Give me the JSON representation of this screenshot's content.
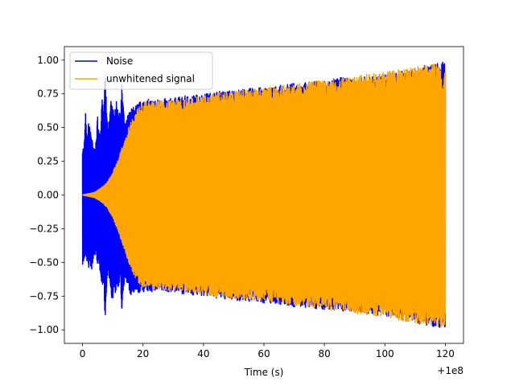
{
  "chart_data": {
    "type": "line",
    "title": "",
    "xlabel": "Time (s)",
    "ylabel": "",
    "x_offset_label": "+1e8",
    "xlim": [
      -6,
      126
    ],
    "ylim": [
      -1.1,
      1.1
    ],
    "x_ticks": [
      0,
      20,
      40,
      60,
      80,
      100,
      120
    ],
    "x_tick_labels": [
      "0",
      "20",
      "40",
      "60",
      "80",
      "100",
      "120"
    ],
    "y_ticks": [
      -1.0,
      -0.75,
      -0.5,
      -0.25,
      0.0,
      0.25,
      0.5,
      0.75,
      1.0
    ],
    "y_tick_labels": [
      "−1.00",
      "−0.75",
      "−0.50",
      "−0.25",
      "0.00",
      "0.25",
      "0.50",
      "0.75",
      "1.00"
    ],
    "grid": false,
    "legend_position": "top-left",
    "series": [
      {
        "name": "Noise",
        "color": "#0000ff",
        "envelope": {
          "x": [
            0,
            0.5,
            1,
            1.5,
            2,
            2.5,
            3,
            3.5,
            4,
            4.5,
            5,
            5.5,
            6,
            6.5,
            7,
            7.5,
            8,
            8.5,
            9,
            9.5,
            10,
            10.5,
            11,
            11.5,
            12,
            12.5,
            13,
            13.5,
            14,
            15,
            16,
            20,
            25,
            30,
            35,
            40,
            45,
            50,
            55,
            60,
            65,
            70,
            75,
            80,
            85,
            90,
            95,
            100,
            105,
            110,
            115,
            120
          ],
          "upper": [
            0.36,
            0.35,
            0.61,
            0.4,
            0.55,
            0.5,
            0.45,
            0.35,
            0.35,
            0.4,
            0.6,
            0.45,
            0.5,
            0.8,
            0.55,
            0.95,
            0.6,
            0.5,
            0.6,
            0.75,
            0.65,
            0.6,
            0.72,
            0.65,
            0.65,
            0.58,
            0.82,
            0.68,
            0.5,
            0.6,
            0.64,
            0.71,
            0.71,
            0.72,
            0.74,
            0.75,
            0.77,
            0.78,
            0.79,
            0.8,
            0.81,
            0.83,
            0.84,
            0.85,
            0.87,
            0.87,
            0.88,
            0.9,
            0.92,
            0.94,
            0.97,
            0.99
          ],
          "lower": [
            -0.52,
            -0.5,
            -0.45,
            -0.5,
            -0.55,
            -0.5,
            -0.6,
            -0.5,
            -0.45,
            -0.45,
            -0.52,
            -0.55,
            -0.58,
            -0.7,
            -0.65,
            -0.95,
            -0.7,
            -0.55,
            -0.65,
            -0.8,
            -0.78,
            -0.68,
            -0.75,
            -0.65,
            -0.72,
            -0.6,
            -0.88,
            -0.72,
            -0.6,
            -0.7,
            -0.75,
            -0.72,
            -0.72,
            -0.72,
            -0.74,
            -0.75,
            -0.77,
            -0.78,
            -0.79,
            -0.8,
            -0.81,
            -0.83,
            -0.84,
            -0.85,
            -0.86,
            -0.87,
            -0.89,
            -0.9,
            -0.92,
            -0.95,
            -0.97,
            -0.99
          ]
        }
      },
      {
        "name": "unwhitened signal",
        "color": "#ffa500",
        "envelope": {
          "x": [
            0,
            2,
            4,
            6,
            8,
            10,
            12,
            14,
            16,
            18,
            20,
            22,
            25,
            30,
            35,
            40,
            45,
            50,
            55,
            60,
            65,
            70,
            75,
            80,
            85,
            90,
            95,
            100,
            105,
            110,
            115,
            118,
            119,
            119.3,
            119.6,
            120
          ],
          "upper": [
            0.0,
            0.01,
            0.02,
            0.05,
            0.09,
            0.17,
            0.28,
            0.42,
            0.55,
            0.64,
            0.69,
            0.7,
            0.7,
            0.71,
            0.72,
            0.74,
            0.76,
            0.77,
            0.78,
            0.79,
            0.81,
            0.82,
            0.84,
            0.85,
            0.86,
            0.88,
            0.9,
            0.91,
            0.93,
            0.95,
            0.97,
            0.98,
            0.85,
            0.75,
            1.0,
            1.0
          ],
          "lower": [
            0.0,
            -0.01,
            -0.02,
            -0.05,
            -0.09,
            -0.17,
            -0.28,
            -0.42,
            -0.55,
            -0.64,
            -0.69,
            -0.7,
            -0.7,
            -0.71,
            -0.72,
            -0.74,
            -0.76,
            -0.77,
            -0.78,
            -0.79,
            -0.8,
            -0.82,
            -0.83,
            -0.85,
            -0.86,
            -0.88,
            -0.89,
            -0.91,
            -0.93,
            -0.95,
            -0.97,
            -0.98,
            -0.99,
            -0.99,
            -1.0,
            -1.0
          ]
        }
      }
    ]
  }
}
